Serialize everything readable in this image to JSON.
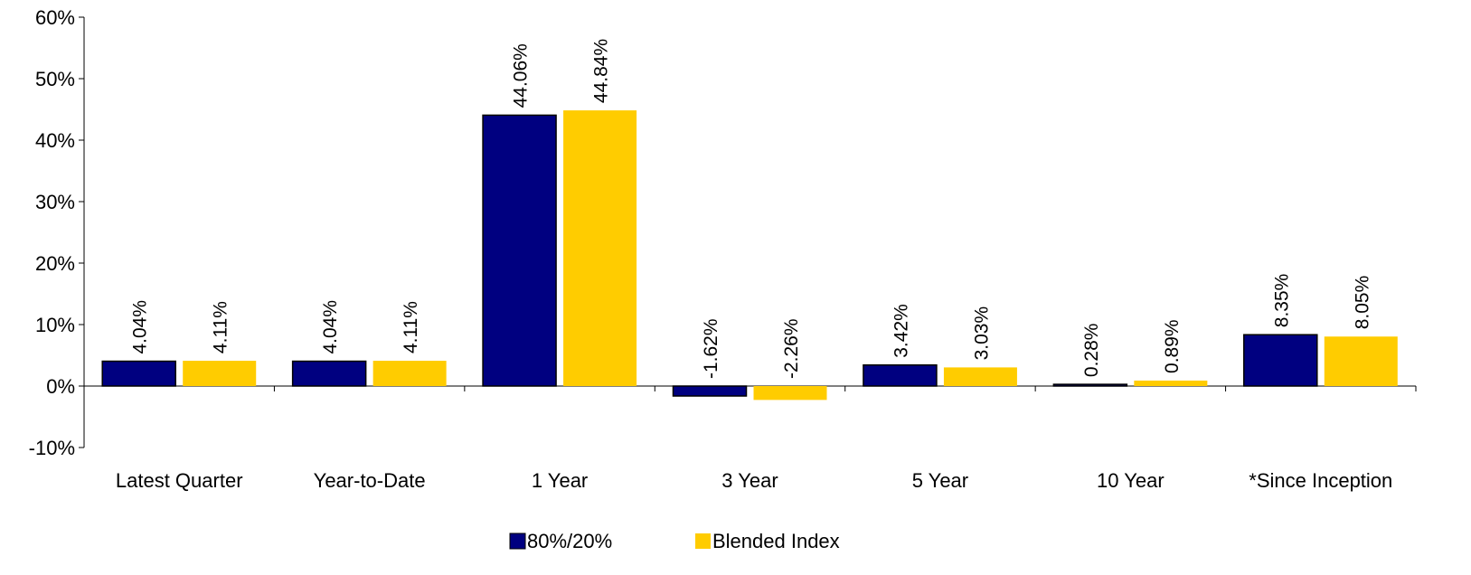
{
  "chart_data": {
    "type": "bar",
    "title": "",
    "xlabel": "",
    "ylabel": "",
    "categories": [
      "Latest Quarter",
      "Year-to-Date",
      "1 Year",
      "3 Year",
      "5 Year",
      "10 Year",
      "*Since Inception"
    ],
    "series": [
      {
        "name": "80%/20%",
        "color": "#000080",
        "values": [
          4.04,
          4.04,
          44.06,
          -1.62,
          3.42,
          0.28,
          8.35
        ],
        "labels": [
          "4.04%",
          "4.04%",
          "44.06%",
          "-1.62%",
          "3.42%",
          "0.28%",
          "8.35%"
        ]
      },
      {
        "name": "Blended Index",
        "color": "#FFCC00",
        "values": [
          4.11,
          4.11,
          44.84,
          -2.26,
          3.03,
          0.89,
          8.05
        ],
        "labels": [
          "4.11%",
          "4.11%",
          "44.84%",
          "-2.26%",
          "3.03%",
          "0.89%",
          "8.05%"
        ]
      }
    ],
    "ylim": [
      -10,
      60
    ],
    "yticks": [
      -10,
      0,
      10,
      20,
      30,
      40,
      50,
      60
    ],
    "ytick_labels": [
      "-10%",
      "0%",
      "10%",
      "20%",
      "30%",
      "40%",
      "50%",
      "60%"
    ],
    "grid": false,
    "legend": "bottom"
  }
}
